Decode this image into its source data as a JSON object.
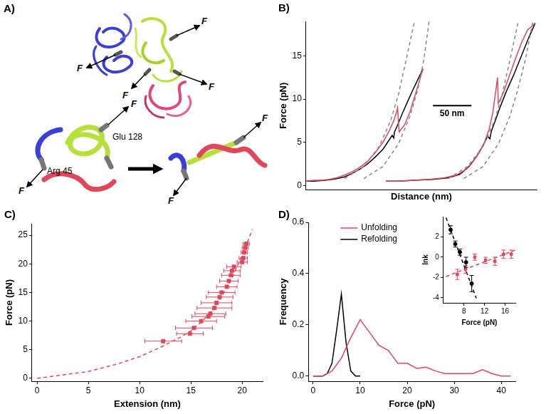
{
  "diagram": {
    "label": "A)",
    "force_label": "F",
    "residues": [
      "Glu 128",
      "Arg 45"
    ]
  },
  "chart_data": [
    {
      "type": "line",
      "title": "B)",
      "x_label": "Distance (nm)",
      "y_label": "Force (pN)",
      "xlim": [
        0,
        300
      ],
      "ylim": [
        -0.5,
        19
      ],
      "yticks": [
        0,
        5,
        10,
        15
      ],
      "tick_labels": "y",
      "grid": false,
      "scale_bar": {
        "value": 50,
        "label": "50 nm"
      },
      "series": [
        {
          "color": "#888888",
          "line_style": "dashed",
          "x": [
            50,
            75,
            95,
            110,
            120,
            130,
            141
          ],
          "values": [
            0.8,
            2.2,
            4.5,
            7.5,
            10.5,
            14.5,
            19
          ]
        },
        {
          "color": "#888888",
          "line_style": "dashed",
          "x": [
            75,
            100,
            120,
            135,
            145,
            153,
            160
          ],
          "values": [
            0.8,
            2.2,
            4.8,
            8.0,
            11.0,
            14.5,
            19
          ]
        },
        {
          "color": "#888888",
          "line_style": "dashed",
          "x": [
            185,
            210,
            230,
            245,
            255,
            265,
            276
          ],
          "values": [
            0.8,
            2.2,
            4.5,
            7.5,
            10.5,
            14.5,
            19
          ]
        },
        {
          "color": "#888888",
          "line_style": "dashed",
          "x": [
            205,
            230,
            250,
            265,
            275,
            285,
            295
          ],
          "values": [
            0.8,
            2.2,
            4.8,
            8.0,
            11.0,
            14.5,
            19
          ]
        },
        {
          "color": "#e0475a",
          "x": [
            0,
            10,
            20,
            30,
            40,
            50,
            60,
            70,
            80,
            90,
            100,
            108,
            114,
            118,
            119,
            121,
            128,
            135,
            142,
            148,
            152
          ],
          "values": [
            0.5,
            0.6,
            0.6,
            0.7,
            0.9,
            1.2,
            1.6,
            2.1,
            2.8,
            3.8,
            5.0,
            6.3,
            7.5,
            8.6,
            9.0,
            6.2,
            7.0,
            8.5,
            10.5,
            12.3,
            13.5
          ]
        },
        {
          "color": "#000000",
          "x": [
            152,
            145,
            138,
            131,
            125,
            119,
            115,
            114,
            112,
            106,
            100,
            90,
            80,
            70,
            60,
            50,
            40,
            25,
            10,
            0
          ],
          "values": [
            13.5,
            12.2,
            10.9,
            9.5,
            8.3,
            7.0,
            6.2,
            5.5,
            5.8,
            5.0,
            4.2,
            3.3,
            2.5,
            1.9,
            1.4,
            1.0,
            0.8,
            0.6,
            0.5,
            0.5
          ]
        },
        {
          "color": "#e0475a",
          "x": [
            104,
            120,
            140,
            160,
            180,
            195,
            205,
            215,
            225,
            232,
            238,
            243,
            246,
            249,
            250,
            256,
            264,
            272,
            280,
            288,
            298
          ],
          "values": [
            0.5,
            0.5,
            0.6,
            0.7,
            0.9,
            1.2,
            1.7,
            2.5,
            3.8,
            5.0,
            6.5,
            8.5,
            10.5,
            12.5,
            9.5,
            10.6,
            12.6,
            14.6,
            16.5,
            18.0,
            18.8
          ]
        },
        {
          "color": "#000000",
          "x": [
            298,
            290,
            280,
            270,
            260,
            252,
            246,
            241,
            239,
            236,
            230,
            222,
            212,
            200,
            185,
            165,
            140,
            120,
            104
          ],
          "values": [
            18.8,
            17.2,
            15.0,
            12.8,
            10.8,
            9.0,
            7.5,
            6.3,
            5.4,
            5.7,
            4.6,
            3.4,
            2.2,
            1.3,
            0.9,
            0.7,
            0.6,
            0.5,
            0.5
          ]
        }
      ]
    },
    {
      "type": "scatter",
      "title": "C)",
      "x_label": "Extension (nm)",
      "y_label": "Force (pN)",
      "xlim": [
        -0.5,
        22
      ],
      "ylim": [
        -0.5,
        27
      ],
      "xticks": [
        0,
        5,
        10,
        15,
        20
      ],
      "yticks": [
        0,
        5,
        10,
        15,
        20,
        25
      ],
      "grid": false,
      "series": [
        {
          "type": "line",
          "line_style": "dashed",
          "color": "#e0475a",
          "x": [
            0,
            5,
            8,
            10,
            12,
            14,
            15,
            16,
            17,
            18,
            19,
            20,
            21
          ],
          "values": [
            0,
            1.2,
            2.6,
            3.8,
            5.4,
            7.2,
            8.3,
            9.8,
            11.7,
            14.3,
            17.5,
            21.5,
            26
          ]
        },
        {
          "type": "scatter",
          "marker": "square",
          "color": "#e0475a",
          "x": [
            12.3,
            14.9,
            15.3,
            16.0,
            16.7,
            16.9,
            17.3,
            17.5,
            17.8,
            18.0,
            18.5,
            18.7,
            18.9,
            19.0,
            19.2,
            20.0,
            20.1,
            20.2,
            20.3,
            20.4
          ],
          "values": [
            6.5,
            7.8,
            8.8,
            10.0,
            10.8,
            11.3,
            12.3,
            13.2,
            14.2,
            15.0,
            16.0,
            17.0,
            18.0,
            18.8,
            19.5,
            20.3,
            21.0,
            22.0,
            22.8,
            23.5
          ],
          "xerr": [
            1.8,
            1.3,
            1.8,
            1.5,
            1.6,
            1.5,
            1.7,
            1.5,
            1.3,
            1.3,
            1.0,
            0.9,
            0.9,
            0.8,
            0.7,
            0.5,
            0.4,
            0.3,
            0.3,
            0.3
          ]
        }
      ]
    },
    {
      "type": "line",
      "title": "D)",
      "x_label": "Force (pN)",
      "y_label": "Frequency",
      "xlim": [
        -1,
        43
      ],
      "ylim": [
        -0.02,
        0.6
      ],
      "xticks": [
        0,
        10,
        20,
        30,
        40
      ],
      "yticks": [
        {
          "value": 0,
          "label": "0.0"
        },
        {
          "value": 0.2,
          "label": "0.2"
        },
        {
          "value": 0.4,
          "label": "0.4"
        },
        {
          "value": 0.6,
          "label": "0.6"
        }
      ],
      "grid": false,
      "legend": "top-left",
      "series": [
        {
          "name": "Unfolding",
          "color": "#e0475a",
          "x": [
            0,
            2,
            4,
            6,
            8,
            10,
            12,
            14,
            16,
            18,
            20,
            22,
            24,
            26,
            28,
            30,
            32,
            34,
            36,
            38,
            40,
            42
          ],
          "values": [
            0,
            0,
            0.02,
            0.07,
            0.15,
            0.22,
            0.17,
            0.12,
            0.1,
            0.05,
            0.05,
            0.03,
            0.035,
            0.02,
            0.01,
            0.01,
            0.01,
            0.01,
            0.025,
            0.01,
            0,
            0
          ]
        },
        {
          "name": "Refolding",
          "color": "#000000",
          "x": [
            0,
            2,
            3,
            4,
            5,
            6,
            7,
            8,
            9,
            10
          ],
          "values": [
            0,
            0,
            0.01,
            0.05,
            0.18,
            0.32,
            0.13,
            0.02,
            0,
            0
          ]
        }
      ]
    },
    {
      "type": "scatter",
      "x_label": "Force (pN)",
      "y_label": "lnk",
      "xlim": [
        4,
        18
      ],
      "ylim": [
        -4.5,
        4
      ],
      "xticks": [
        8,
        12,
        16
      ],
      "yticks": [
        -4,
        -2,
        0,
        2
      ],
      "grid": false,
      "series": [
        {
          "type": "line",
          "line_style": "dashed",
          "color": "#e0475a",
          "x": [
            4.5,
            18
          ],
          "values": [
            -1.9,
            0.7
          ]
        },
        {
          "type": "line",
          "line_style": "dashed",
          "color": "#000000",
          "x": [
            4.5,
            10.4
          ],
          "values": [
            3.9,
            -4.05
          ]
        },
        {
          "type": "scatter",
          "marker": "square",
          "color": "#e0475a",
          "x": [
            6.7,
            8.3,
            10.1,
            12.2,
            14.0,
            15.7,
            17.2
          ],
          "values": [
            -1.7,
            -1.2,
            0.0,
            -0.3,
            -0.4,
            0.3,
            0.3
          ],
          "yerr": [
            0.5,
            0.4,
            0.3,
            0.3,
            0.4,
            0.4,
            0.4
          ]
        },
        {
          "type": "scatter",
          "marker": "circle",
          "color": "#000000",
          "x": [
            5.4,
            6.3,
            7.2,
            8.4,
            9.5
          ],
          "values": [
            2.7,
            1.3,
            0.5,
            -0.5,
            -2.6
          ],
          "yerr": [
            0.4,
            0.3,
            0.3,
            0.5,
            0.8
          ]
        }
      ]
    }
  ]
}
